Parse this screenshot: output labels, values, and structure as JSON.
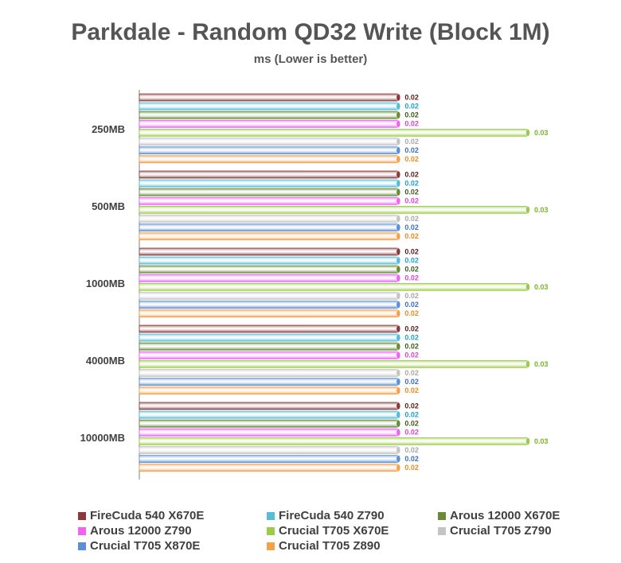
{
  "chart_data": {
    "type": "bar",
    "orientation": "horizontal",
    "title": "Parkdale - Random QD32 Write (Block 1M)",
    "subtitle": "ms (Lower is better)",
    "categories": [
      "250MB",
      "500MB",
      "1000MB",
      "4000MB",
      "10000MB"
    ],
    "xlim": [
      0,
      0.03
    ],
    "grid": false,
    "legend_position": "bottom",
    "series": [
      {
        "name": "FireCuda 540 X670E",
        "color": "#8B3A3A",
        "label_color": "#5a1a1a",
        "values": [
          0.02,
          0.02,
          0.02,
          0.02,
          0.02
        ],
        "labels": [
          "0.02",
          "0.02",
          "0.02",
          "0.02",
          "0.02"
        ]
      },
      {
        "name": "FireCuda 540 Z790",
        "color": "#56BCD8",
        "label_color": "#1aa3d6",
        "values": [
          0.02,
          0.02,
          0.02,
          0.02,
          0.02
        ],
        "labels": [
          "0.02",
          "0.02",
          "0.02",
          "0.02",
          "0.02"
        ]
      },
      {
        "name": "Arous 12000 X670E",
        "color": "#6A8A3A",
        "label_color": "#3d5a1a",
        "values": [
          0.02,
          0.02,
          0.02,
          0.02,
          0.02
        ],
        "labels": [
          "0.02",
          "0.02",
          "0.02",
          "0.02",
          "0.02"
        ]
      },
      {
        "name": "Arous 12000 Z790",
        "color": "#F062F0",
        "label_color": "#e040e0",
        "values": [
          0.02,
          0.02,
          0.02,
          0.02,
          0.02
        ],
        "labels": [
          "0.02",
          "0.02",
          "0.02",
          "0.02",
          "0.02"
        ]
      },
      {
        "name": "Crucial T705 X670E",
        "color": "#9CCB48",
        "label_color": "#7ab32a",
        "values": [
          0.03,
          0.03,
          0.03,
          0.03,
          0.03
        ],
        "labels": [
          "0.03",
          "0.03",
          "0.03",
          "0.03",
          "0.03"
        ]
      },
      {
        "name": "Crucial T705 Z790",
        "color": "#C4C4C4",
        "label_color": "#a8a8a8",
        "values": [
          0.02,
          0.02,
          0.02,
          0.02,
          0.02
        ],
        "labels": [
          "0.02",
          "0.02",
          "0.02",
          "0.02",
          "0.02"
        ]
      },
      {
        "name": "Crucial T705 X870E",
        "color": "#5B8FD6",
        "label_color": "#3a6fc4",
        "values": [
          0.02,
          0.02,
          0.02,
          0.02,
          0.02
        ],
        "labels": [
          "0.02",
          "0.02",
          "0.02",
          "0.02",
          "0.02"
        ]
      },
      {
        "name": "Crucial T705 Z890",
        "color": "#F7A04A",
        "label_color": "#f08a20",
        "values": [
          0.02,
          0.02,
          0.02,
          0.02,
          0.02
        ],
        "labels": [
          "0.02",
          "0.02",
          "0.02",
          "0.02",
          "0.02"
        ]
      }
    ]
  }
}
